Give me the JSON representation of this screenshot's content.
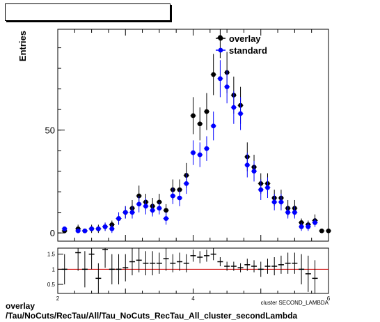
{
  "footer": {
    "line1": "overlay",
    "line2": "/Tau/NoCuts/RecTau/All/Tau_NoCuts_RecTau_All_cluster_secondLambda"
  },
  "chart_data": [
    {
      "type": "scatter",
      "title": "cluster SECOND_LAMBDA",
      "ylabel": "Entries",
      "xlim": [
        2.0,
        6.0
      ],
      "ylim": [
        -4,
        99
      ],
      "yticks": [
        0,
        50
      ],
      "legend_position": "top-right",
      "series": [
        {
          "name": "overlay",
          "color": "#000000",
          "x": [
            2.1,
            2.3,
            2.4,
            2.5,
            2.6,
            2.7,
            2.8,
            2.9,
            3.0,
            3.1,
            3.2,
            3.3,
            3.4,
            3.5,
            3.6,
            3.7,
            3.8,
            3.9,
            4.0,
            4.1,
            4.2,
            4.3,
            4.4,
            4.5,
            4.6,
            4.7,
            4.8,
            4.9,
            5.0,
            5.1,
            5.2,
            5.3,
            5.4,
            5.5,
            5.6,
            5.7,
            5.8,
            5.9,
            6.0
          ],
          "y": [
            1,
            2,
            1,
            2,
            2,
            3,
            4,
            7,
            10,
            12,
            18,
            15,
            13,
            15,
            11,
            21,
            21,
            28,
            57,
            53,
            59,
            77,
            95,
            78,
            67,
            62,
            37,
            32,
            24,
            24,
            17,
            17,
            12,
            12,
            5,
            4,
            6,
            1,
            1
          ],
          "err": [
            1,
            2,
            1,
            2,
            2,
            2,
            2,
            3,
            3,
            4,
            5,
            4,
            4,
            4,
            3,
            5,
            5,
            6,
            9,
            8,
            9,
            10,
            10,
            10,
            9,
            9,
            7,
            6,
            5,
            5,
            4,
            4,
            4,
            4,
            2,
            2,
            3,
            1,
            1
          ]
        },
        {
          "name": "standard",
          "color": "#0000ff",
          "x": [
            2.1,
            2.3,
            2.4,
            2.5,
            2.6,
            2.7,
            2.8,
            2.9,
            3.0,
            3.1,
            3.2,
            3.3,
            3.4,
            3.5,
            3.6,
            3.7,
            3.8,
            3.9,
            4.0,
            4.1,
            4.2,
            4.3,
            4.4,
            4.5,
            4.6,
            4.7,
            4.8,
            4.9,
            5.0,
            5.1,
            5.2,
            5.3,
            5.4,
            5.5,
            5.6,
            5.7,
            5.8
          ],
          "y": [
            2,
            1,
            1,
            2,
            2,
            3,
            2,
            7,
            10,
            10,
            14,
            13,
            11,
            12,
            7,
            18,
            17,
            24,
            39,
            38,
            41,
            52,
            75,
            71,
            61,
            58,
            33,
            30,
            21,
            22,
            15,
            15,
            10,
            10,
            3,
            3,
            5
          ],
          "err": [
            1,
            1,
            1,
            1,
            1,
            2,
            2,
            3,
            3,
            3,
            4,
            4,
            3,
            3,
            3,
            4,
            4,
            5,
            6,
            6,
            6,
            7,
            9,
            8,
            8,
            8,
            6,
            5,
            5,
            5,
            4,
            4,
            3,
            3,
            2,
            2,
            2
          ]
        }
      ]
    },
    {
      "type": "scatter",
      "title": "",
      "xlabel": "cluster SECOND_LAMBDA",
      "xlim": [
        2.0,
        6.0
      ],
      "ylim": [
        0.2,
        1.7
      ],
      "xticks": [
        2,
        4,
        6
      ],
      "yticks": [
        0.5,
        1,
        1.5
      ],
      "reference_line": 1.0,
      "reference_color": "#cc0000",
      "series": [
        {
          "name": "overlay/standard",
          "color": "#000000",
          "x": [
            2.1,
            2.3,
            2.4,
            2.5,
            2.6,
            2.7,
            2.8,
            2.9,
            3.0,
            3.1,
            3.2,
            3.3,
            3.4,
            3.5,
            3.6,
            3.7,
            3.8,
            3.9,
            4.0,
            4.1,
            4.2,
            4.3,
            4.4,
            4.5,
            4.6,
            4.7,
            4.8,
            4.9,
            5.0,
            5.1,
            5.2,
            5.3,
            5.4,
            5.5,
            5.6,
            5.7,
            5.8
          ],
          "y": [
            1.0,
            1.55,
            1.0,
            1.5,
            0.7,
            1.65,
            1.0,
            1.0,
            1.05,
            1.25,
            1.3,
            1.2,
            1.2,
            1.2,
            1.35,
            1.2,
            1.25,
            1.2,
            1.45,
            1.4,
            1.45,
            1.5,
            1.25,
            1.1,
            1.1,
            1.05,
            1.15,
            1.1,
            1.0,
            1.1,
            1.1,
            1.15,
            1.2,
            1.2,
            1.0,
            0.85,
            0.7
          ],
          "err": [
            0.5,
            0.6,
            0.6,
            0.5,
            0.5,
            0.6,
            0.5,
            0.5,
            0.45,
            0.45,
            0.4,
            0.4,
            0.4,
            0.35,
            0.4,
            0.3,
            0.3,
            0.3,
            0.2,
            0.2,
            0.2,
            0.2,
            0.15,
            0.15,
            0.15,
            0.15,
            0.2,
            0.2,
            0.25,
            0.25,
            0.3,
            0.3,
            0.35,
            0.35,
            0.5,
            0.6,
            0.6
          ]
        }
      ]
    }
  ]
}
